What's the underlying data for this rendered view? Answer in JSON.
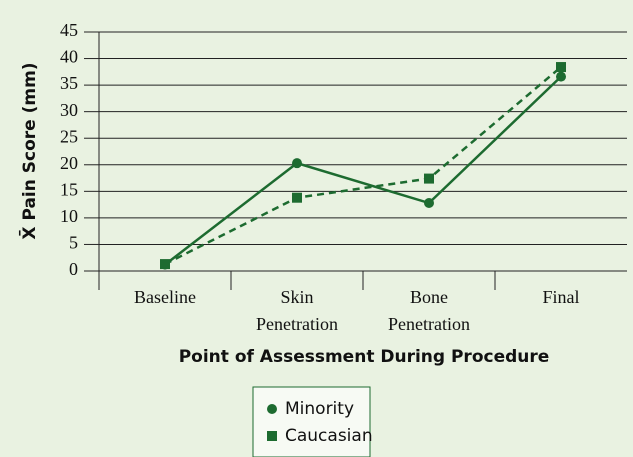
{
  "chart_data": {
    "type": "line",
    "y_label": "X̄ Pain Score (mm)",
    "x_label": "Point of Assessment During Procedure",
    "categories": [
      "Baseline",
      "Skin Penetration",
      "Bone Penetration",
      "Final"
    ],
    "series": [
      {
        "name": "Minority",
        "color": "#1d6b30",
        "values": [
          1.2,
          20.3,
          12.8,
          36.6
        ],
        "dash": false,
        "marker": "circle"
      },
      {
        "name": "Caucasian",
        "color": "#1d6b30",
        "values": [
          1.3,
          13.8,
          17.4,
          38.4
        ],
        "dash": true,
        "marker": "square"
      }
    ],
    "ylim": [
      0,
      45
    ],
    "yticks": [
      0,
      5,
      10,
      15,
      20,
      25,
      30,
      35,
      40,
      45
    ],
    "grid": true
  }
}
